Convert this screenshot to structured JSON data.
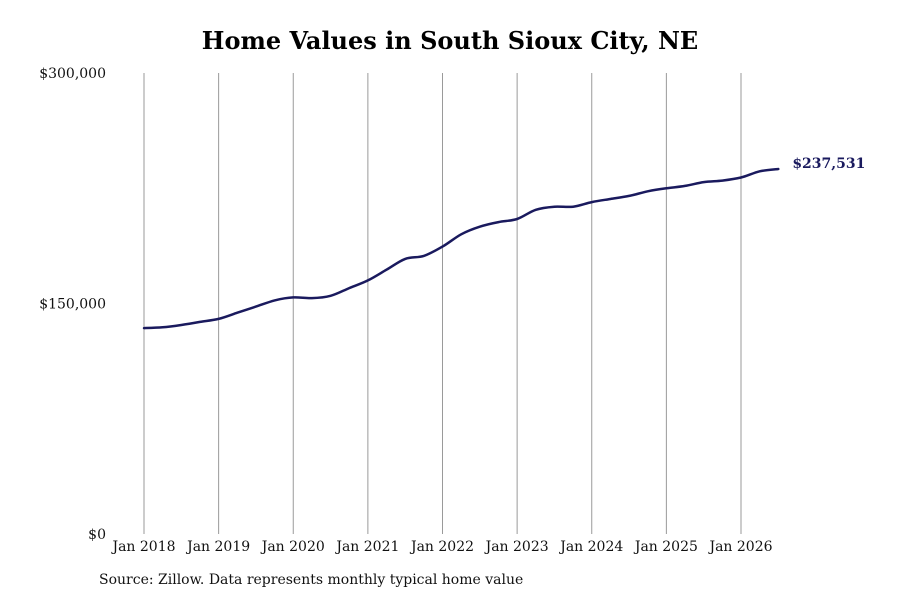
{
  "chart_data": {
    "type": "line",
    "title": "Home Values in South Sioux City, NE",
    "source": "Source: Zillow. Data represents monthly typical home value",
    "ylim": [
      0,
      300000
    ],
    "y_ticks": [
      {
        "value": 0,
        "label": "$0"
      },
      {
        "value": 150000,
        "label": "$150,000"
      },
      {
        "value": 300000,
        "label": "$300,000"
      }
    ],
    "x_ticks": [
      {
        "value": 2018.0,
        "label": "Jan 2018"
      },
      {
        "value": 2019.0,
        "label": "Jan 2019"
      },
      {
        "value": 2020.0,
        "label": "Jan 2020"
      },
      {
        "value": 2021.0,
        "label": "Jan 2021"
      },
      {
        "value": 2022.0,
        "label": "Jan 2022"
      },
      {
        "value": 2023.0,
        "label": "Jan 2023"
      },
      {
        "value": 2024.0,
        "label": "Jan 2024"
      },
      {
        "value": 2025.0,
        "label": "Jan 2025"
      },
      {
        "value": 2026.0,
        "label": "Jan 2026"
      }
    ],
    "xlim": [
      2018.0,
      2026.5
    ],
    "grid": "vertical",
    "line_color": "#1a1a5e",
    "end_label": "$237,531",
    "series": [
      {
        "x": [
          2018.0,
          2018.25,
          2018.5,
          2018.75,
          2019.0,
          2019.25,
          2019.5,
          2019.75,
          2020.0,
          2020.25,
          2020.5,
          2020.75,
          2021.0,
          2021.25,
          2021.5,
          2021.75,
          2022.0,
          2022.25,
          2022.5,
          2022.75,
          2023.0,
          2023.25,
          2023.5,
          2023.75,
          2024.0,
          2024.25,
          2024.5,
          2024.75,
          2025.0,
          2025.25,
          2025.5,
          2025.75,
          2026.0,
          2026.25,
          2026.5
        ],
        "values": [
          134000,
          134500,
          136000,
          138000,
          140000,
          144000,
          148000,
          152000,
          154000,
          153500,
          155000,
          160000,
          165000,
          172000,
          179000,
          181000,
          187000,
          195000,
          200000,
          203000,
          205000,
          211000,
          213000,
          213000,
          216000,
          218000,
          220000,
          223000,
          225000,
          226500,
          229000,
          230000,
          232000,
          236000,
          237531
        ]
      }
    ]
  }
}
